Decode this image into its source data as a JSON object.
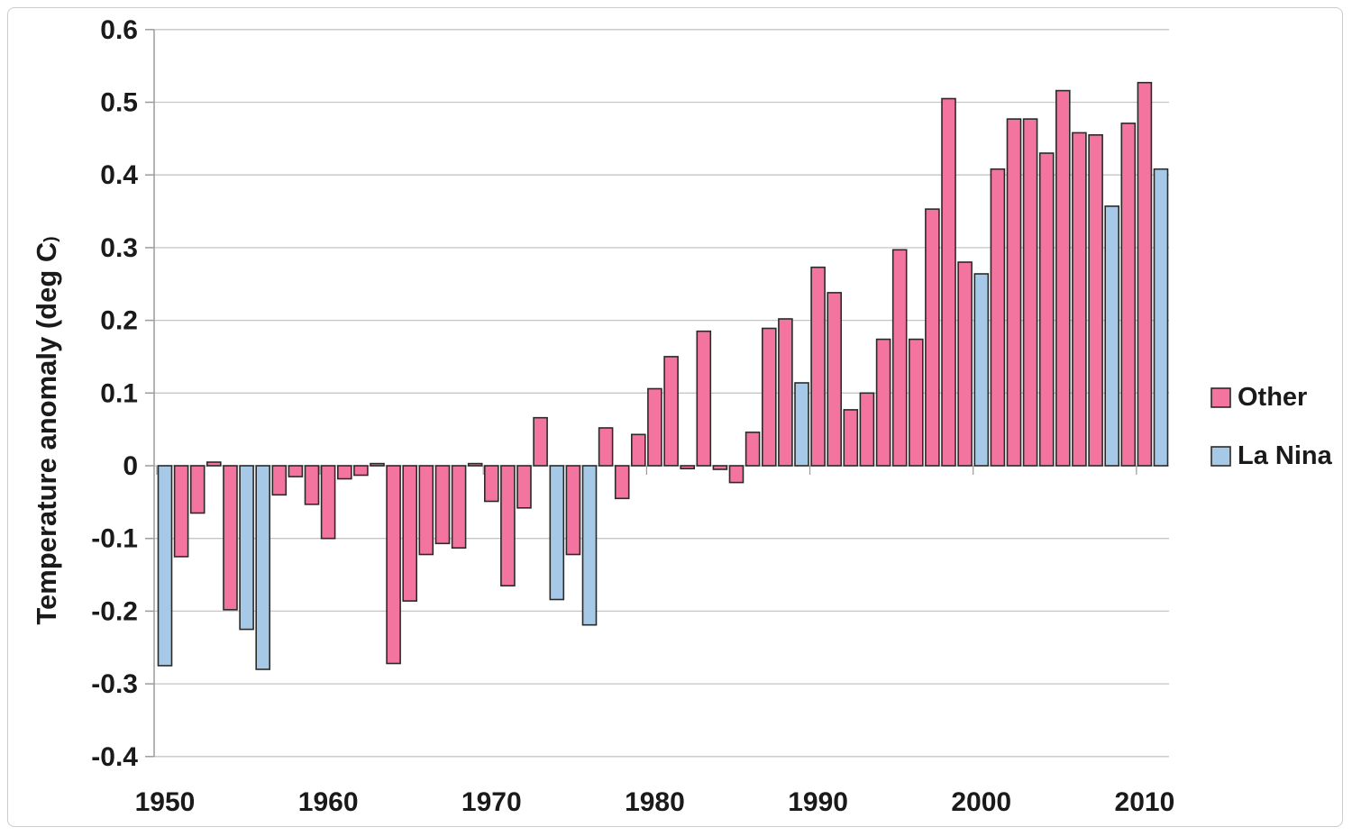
{
  "chart_data": {
    "type": "bar",
    "title": "",
    "xlabel": "",
    "ylabel": "Temperature anomaly (deg C)",
    "ylabel_main": "Temperature anomaly (deg C",
    "ylabel_paren": ")",
    "ylim": [
      -0.4,
      0.6
    ],
    "ytick_step": 0.1,
    "ytick_labels": [
      "0.6",
      "0.5",
      "0.4",
      "0.3",
      "0.2",
      "0.1",
      "0",
      "-0.1",
      "-0.2",
      "-0.3",
      "-0.4"
    ],
    "xtick_labels": [
      "1950",
      "1960",
      "1970",
      "1980",
      "1990",
      "2000",
      "2010"
    ],
    "grid": true,
    "grid_color": "#c6c6c6",
    "axis_color": "#9b9b9b",
    "bar_border_color": "#2a2a2a",
    "text_color": "#1a1a1a",
    "legend": {
      "position": "right",
      "entries": [
        {
          "label": "Other",
          "color": "#f3759f"
        },
        {
          "label": "La Nina",
          "color": "#a6c9e8"
        }
      ]
    },
    "bars": [
      {
        "year": 1950,
        "value": -0.275,
        "series": "La Nina"
      },
      {
        "year": 1951,
        "value": -0.125,
        "series": "Other"
      },
      {
        "year": 1952,
        "value": -0.065,
        "series": "Other"
      },
      {
        "year": 1953,
        "value": 0.005,
        "series": "Other"
      },
      {
        "year": 1954,
        "value": -0.198,
        "series": "Other"
      },
      {
        "year": 1955,
        "value": -0.225,
        "series": "La Nina"
      },
      {
        "year": 1956,
        "value": -0.28,
        "series": "La Nina"
      },
      {
        "year": 1957,
        "value": -0.04,
        "series": "Other"
      },
      {
        "year": 1958,
        "value": -0.015,
        "series": "Other"
      },
      {
        "year": 1959,
        "value": -0.053,
        "series": "Other"
      },
      {
        "year": 1960,
        "value": -0.1,
        "series": "Other"
      },
      {
        "year": 1961,
        "value": -0.018,
        "series": "Other"
      },
      {
        "year": 1962,
        "value": -0.013,
        "series": "Other"
      },
      {
        "year": 1963,
        "value": 0.003,
        "series": "Other"
      },
      {
        "year": 1964,
        "value": -0.272,
        "series": "Other"
      },
      {
        "year": 1965,
        "value": -0.186,
        "series": "Other"
      },
      {
        "year": 1966,
        "value": -0.122,
        "series": "Other"
      },
      {
        "year": 1967,
        "value": -0.107,
        "series": "Other"
      },
      {
        "year": 1968,
        "value": -0.113,
        "series": "Other"
      },
      {
        "year": 1969,
        "value": 0.003,
        "series": "Other"
      },
      {
        "year": 1970,
        "value": -0.049,
        "series": "Other"
      },
      {
        "year": 1971,
        "value": -0.165,
        "series": "Other"
      },
      {
        "year": 1972,
        "value": -0.058,
        "series": "Other"
      },
      {
        "year": 1973,
        "value": 0.066,
        "series": "Other"
      },
      {
        "year": 1974,
        "value": -0.184,
        "series": "La Nina"
      },
      {
        "year": 1975,
        "value": -0.122,
        "series": "Other"
      },
      {
        "year": 1976,
        "value": -0.219,
        "series": "La Nina"
      },
      {
        "year": 1977,
        "value": 0.052,
        "series": "Other"
      },
      {
        "year": 1978,
        "value": -0.045,
        "series": "Other"
      },
      {
        "year": 1979,
        "value": 0.043,
        "series": "Other"
      },
      {
        "year": 1980,
        "value": 0.106,
        "series": "Other"
      },
      {
        "year": 1981,
        "value": 0.15,
        "series": "Other"
      },
      {
        "year": 1982,
        "value": -0.004,
        "series": "Other"
      },
      {
        "year": 1983,
        "value": 0.185,
        "series": "Other"
      },
      {
        "year": 1984,
        "value": -0.005,
        "series": "Other"
      },
      {
        "year": 1985,
        "value": -0.023,
        "series": "Other"
      },
      {
        "year": 1986,
        "value": 0.046,
        "series": "Other"
      },
      {
        "year": 1987,
        "value": 0.189,
        "series": "Other"
      },
      {
        "year": 1988,
        "value": 0.202,
        "series": "Other"
      },
      {
        "year": 1989,
        "value": 0.114,
        "series": "La Nina"
      },
      {
        "year": 1990,
        "value": 0.273,
        "series": "Other"
      },
      {
        "year": 1991,
        "value": 0.238,
        "series": "Other"
      },
      {
        "year": 1992,
        "value": 0.077,
        "series": "Other"
      },
      {
        "year": 1993,
        "value": 0.1,
        "series": "Other"
      },
      {
        "year": 1994,
        "value": 0.174,
        "series": "Other"
      },
      {
        "year": 1995,
        "value": 0.297,
        "series": "Other"
      },
      {
        "year": 1996,
        "value": 0.174,
        "series": "Other"
      },
      {
        "year": 1997,
        "value": 0.353,
        "series": "Other"
      },
      {
        "year": 1998,
        "value": 0.505,
        "series": "Other"
      },
      {
        "year": 1999,
        "value": 0.28,
        "series": "Other"
      },
      {
        "year": 2000,
        "value": 0.264,
        "series": "La Nina"
      },
      {
        "year": 2001,
        "value": 0.408,
        "series": "Other"
      },
      {
        "year": 2002,
        "value": 0.477,
        "series": "Other"
      },
      {
        "year": 2003,
        "value": 0.477,
        "series": "Other"
      },
      {
        "year": 2004,
        "value": 0.43,
        "series": "Other"
      },
      {
        "year": 2005,
        "value": 0.516,
        "series": "Other"
      },
      {
        "year": 2006,
        "value": 0.458,
        "series": "Other"
      },
      {
        "year": 2007,
        "value": 0.455,
        "series": "Other"
      },
      {
        "year": 2008,
        "value": 0.357,
        "series": "La Nina"
      },
      {
        "year": 2009,
        "value": 0.471,
        "series": "Other"
      },
      {
        "year": 2010,
        "value": 0.527,
        "series": "Other"
      },
      {
        "year": 2011,
        "value": 0.408,
        "series": "La Nina"
      }
    ]
  }
}
